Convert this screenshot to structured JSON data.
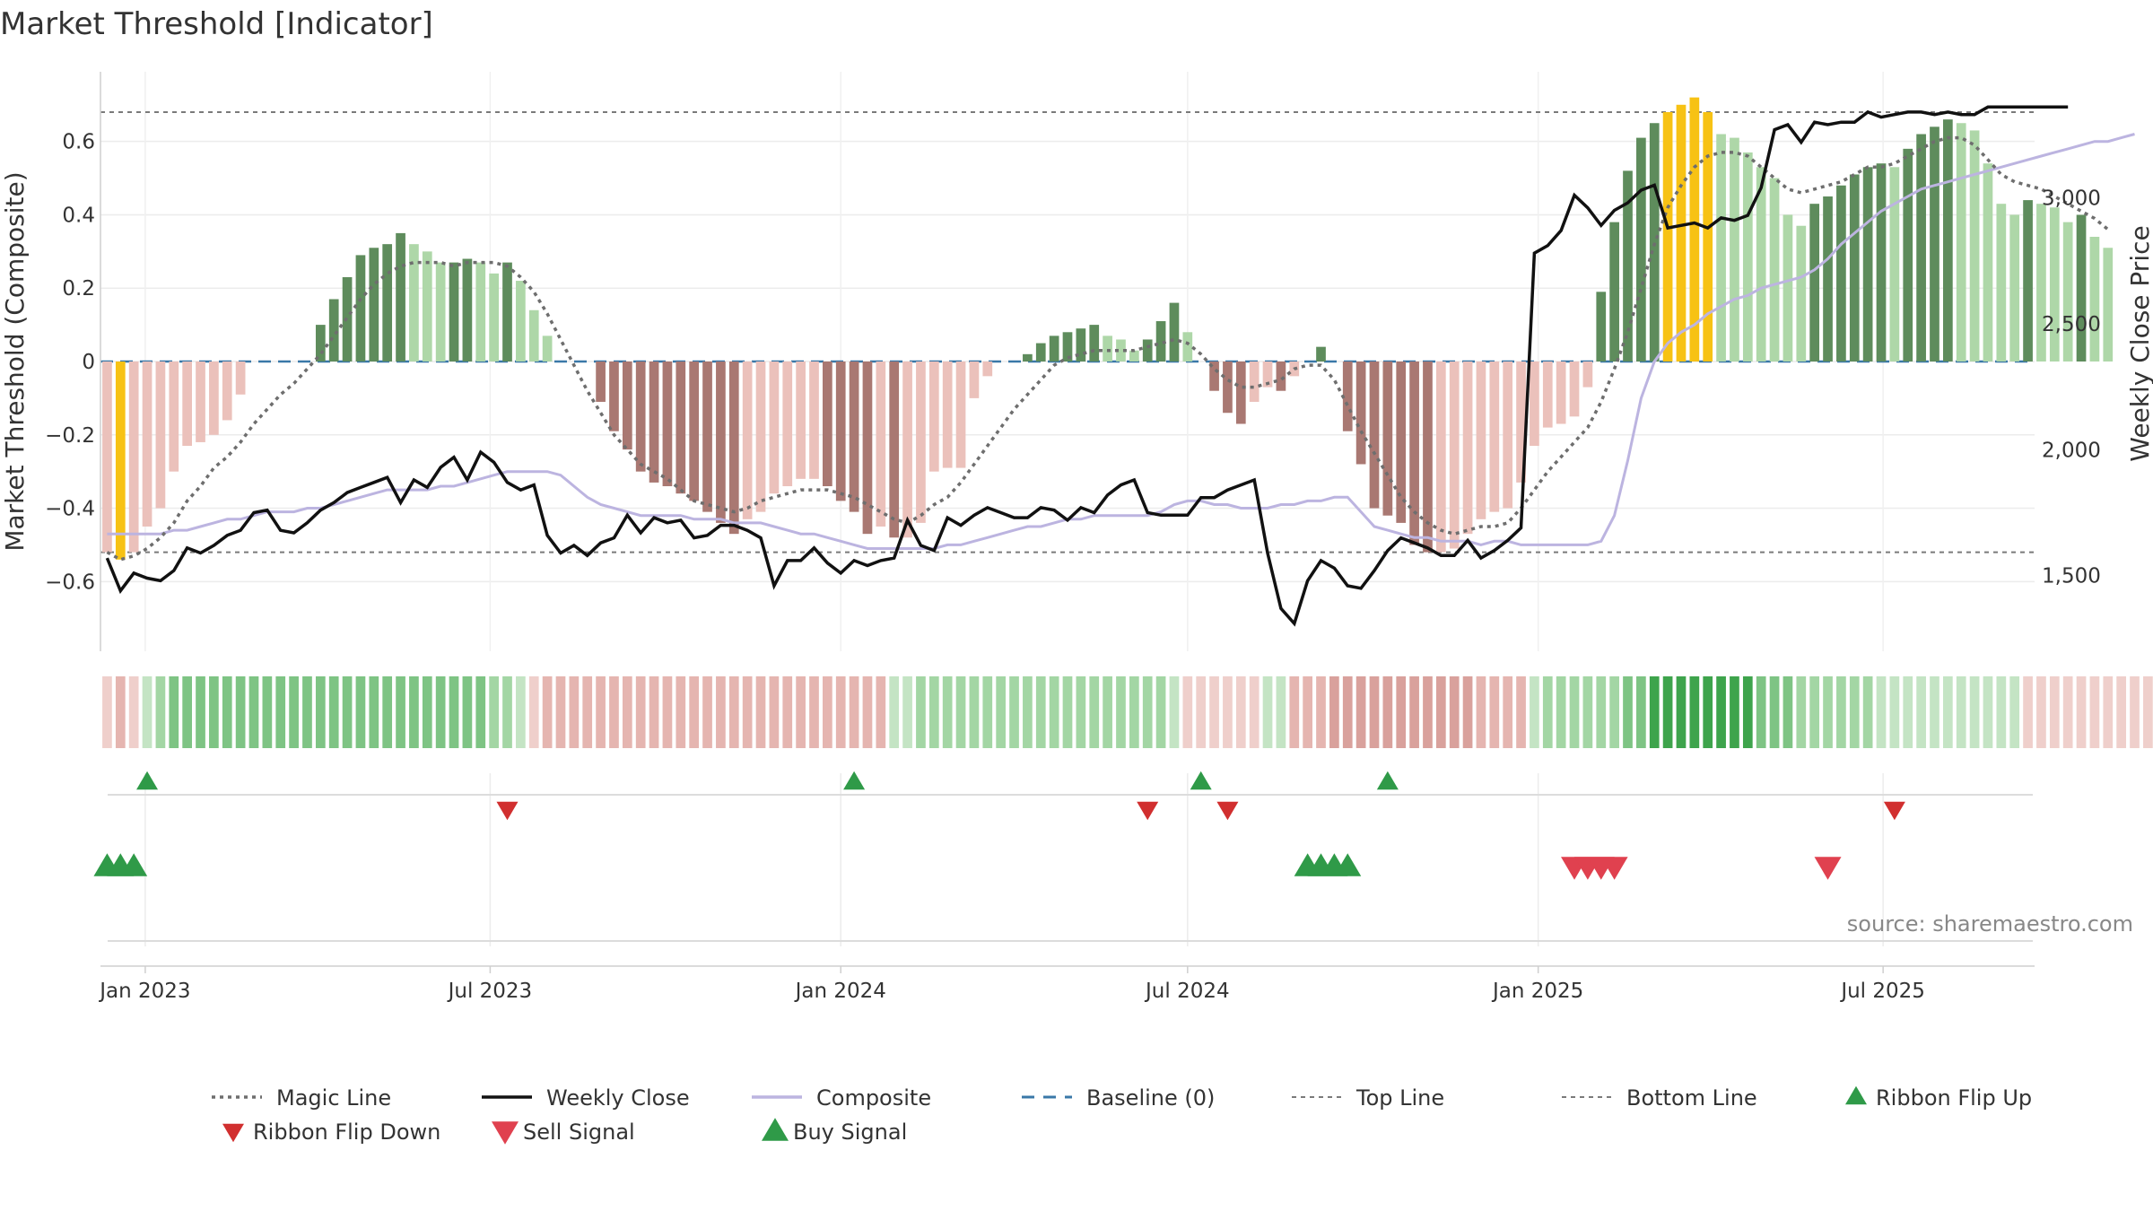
{
  "title": "Market Threshold [Indicator]",
  "source": "source: sharemaestro.com",
  "colors": {
    "strong_pos": "#5e8c5c",
    "weak_pos": "#aed7a8",
    "strong_neg": "#a97872",
    "weak_neg": "#ebc1bb",
    "extreme": "#f7c214",
    "close": "#111111",
    "composite": "#bcb4e0",
    "magic": "#6e6e6e",
    "baseline": "#3a78a8",
    "threshold": "#7a7a7a",
    "flip_up": "#2f9a48",
    "flip_down": "#d12f2f",
    "sell": "#e0414f",
    "buy": "#2f9a48"
  },
  "chart_data": {
    "type": "bar",
    "title": "Market Threshold [Indicator]",
    "ylabel": "Market Threshold (Composite)",
    "y2label": "Weekly Close Price",
    "ylim": [
      -0.79,
      0.79
    ],
    "y2lim": [
      1200,
      3500
    ],
    "yticks": [
      -0.6,
      -0.4,
      -0.2,
      0,
      0.2,
      0.4,
      0.6
    ],
    "ytick_labels": [
      "−0.6",
      "−0.4",
      "−0.2",
      "0",
      "0.2",
      "0.4",
      "0.6"
    ],
    "y2ticks": [
      1500,
      2000,
      2500,
      3000
    ],
    "y2tick_labels": [
      "1,500",
      "2,000",
      "2,500",
      "3,000"
    ],
    "x_start": "2022-12-12",
    "weeks": 145,
    "xticks": [
      {
        "date": "2023-01-01",
        "label": "Jan 2023"
      },
      {
        "date": "2023-07-01",
        "label": "Jul 2023"
      },
      {
        "date": "2024-01-01",
        "label": "Jan 2024"
      },
      {
        "date": "2024-07-01",
        "label": "Jul 2024"
      },
      {
        "date": "2025-01-01",
        "label": "Jan 2025"
      },
      {
        "date": "2025-07-01",
        "label": "Jul 2025"
      }
    ],
    "top_line": 0.68,
    "bottom_line": -0.52,
    "baseline": 0,
    "composite_bars": [
      -0.52,
      -0.54,
      -0.52,
      -0.45,
      -0.4,
      -0.3,
      -0.23,
      -0.22,
      -0.2,
      -0.16,
      -0.09,
      0,
      0,
      0.0,
      0.0,
      0.0,
      0.1,
      0.17,
      0.23,
      0.29,
      0.31,
      0.32,
      0.35,
      0.32,
      0.3,
      0.27,
      0.27,
      0.28,
      0.27,
      0.24,
      0.27,
      0.22,
      0.14,
      0.07,
      0,
      0,
      0,
      -0.11,
      -0.19,
      -0.24,
      -0.3,
      -0.33,
      -0.34,
      -0.36,
      -0.38,
      -0.41,
      -0.44,
      -0.47,
      -0.43,
      -0.41,
      -0.36,
      -0.34,
      -0.32,
      -0.32,
      -0.34,
      -0.38,
      -0.41,
      -0.47,
      -0.45,
      -0.48,
      -0.48,
      -0.44,
      -0.3,
      -0.29,
      -0.29,
      -0.1,
      -0.04,
      0,
      0,
      0.02,
      0.05,
      0.07,
      0.08,
      0.09,
      0.1,
      0.07,
      0.06,
      0.03,
      0.06,
      0.11,
      0.16,
      0.08,
      0,
      -0.08,
      -0.14,
      -0.17,
      -0.11,
      -0.07,
      -0.08,
      -0.04,
      0,
      0.04,
      0,
      -0.19,
      -0.28,
      -0.4,
      -0.42,
      -0.44,
      -0.5,
      -0.52,
      -0.52,
      -0.51,
      -0.47,
      -0.43,
      -0.41,
      -0.4,
      -0.33,
      -0.23,
      -0.18,
      -0.17,
      -0.15,
      -0.07,
      0.19,
      0.38,
      0.52,
      0.61,
      0.65,
      0.68,
      0.7,
      0.72,
      0.68,
      0.62,
      0.61,
      0.57,
      0.53,
      0.5,
      0.4,
      0.37,
      0.43,
      0.45,
      0.48,
      0.51,
      0.53,
      0.54,
      0.53,
      0.58,
      0.62,
      0.64,
      0.66,
      0.65,
      0.63,
      0.54,
      0.43,
      0.4,
      0.44,
      0.43,
      0.42,
      0.38,
      0.4,
      0.34,
      0.31
    ],
    "magic_line": [
      -0.52,
      -0.54,
      -0.53,
      -0.51,
      -0.48,
      -0.44,
      -0.38,
      -0.34,
      -0.29,
      -0.26,
      -0.22,
      -0.17,
      -0.13,
      -0.09,
      -0.06,
      -0.02,
      0.02,
      0.07,
      0.12,
      0.17,
      0.21,
      0.24,
      0.26,
      0.27,
      0.27,
      0.27,
      0.26,
      0.27,
      0.27,
      0.27,
      0.26,
      0.23,
      0.19,
      0.13,
      0.06,
      -0.01,
      -0.08,
      -0.14,
      -0.2,
      -0.24,
      -0.28,
      -0.3,
      -0.32,
      -0.35,
      -0.38,
      -0.39,
      -0.4,
      -0.41,
      -0.4,
      -0.38,
      -0.37,
      -0.36,
      -0.35,
      -0.35,
      -0.35,
      -0.36,
      -0.37,
      -0.39,
      -0.41,
      -0.43,
      -0.44,
      -0.42,
      -0.39,
      -0.37,
      -0.33,
      -0.28,
      -0.23,
      -0.18,
      -0.13,
      -0.09,
      -0.05,
      -0.01,
      0.01,
      0.02,
      0.03,
      0.03,
      0.03,
      0.03,
      0.04,
      0.05,
      0.06,
      0.05,
      0.02,
      -0.02,
      -0.05,
      -0.07,
      -0.07,
      -0.06,
      -0.05,
      -0.02,
      -0.01,
      -0.01,
      -0.05,
      -0.12,
      -0.19,
      -0.25,
      -0.31,
      -0.37,
      -0.41,
      -0.44,
      -0.46,
      -0.47,
      -0.46,
      -0.45,
      -0.45,
      -0.44,
      -0.4,
      -0.35,
      -0.3,
      -0.26,
      -0.22,
      -0.18,
      -0.11,
      -0.02,
      0.08,
      0.2,
      0.32,
      0.42,
      0.48,
      0.53,
      0.56,
      0.57,
      0.57,
      0.56,
      0.53,
      0.5,
      0.47,
      0.46,
      0.47,
      0.48,
      0.49,
      0.51,
      0.53,
      0.53,
      0.54,
      0.56,
      0.58,
      0.6,
      0.61,
      0.61,
      0.59,
      0.55,
      0.51,
      0.49,
      0.48,
      0.47,
      0.45,
      0.43,
      0.41,
      0.39,
      0.36
    ],
    "composite_line": [
      -0.47,
      -0.47,
      -0.47,
      -0.47,
      -0.47,
      -0.46,
      -0.46,
      -0.45,
      -0.44,
      -0.43,
      -0.43,
      -0.42,
      -0.41,
      -0.41,
      -0.41,
      -0.4,
      -0.4,
      -0.39,
      -0.38,
      -0.37,
      -0.36,
      -0.35,
      -0.35,
      -0.35,
      -0.35,
      -0.34,
      -0.34,
      -0.33,
      -0.32,
      -0.31,
      -0.3,
      -0.3,
      -0.3,
      -0.3,
      -0.31,
      -0.34,
      -0.37,
      -0.39,
      -0.4,
      -0.41,
      -0.42,
      -0.42,
      -0.42,
      -0.42,
      -0.43,
      -0.43,
      -0.43,
      -0.44,
      -0.44,
      -0.44,
      -0.45,
      -0.46,
      -0.47,
      -0.47,
      -0.48,
      -0.49,
      -0.5,
      -0.51,
      -0.51,
      -0.51,
      -0.51,
      -0.51,
      -0.51,
      -0.5,
      -0.5,
      -0.49,
      -0.48,
      -0.47,
      -0.46,
      -0.45,
      -0.45,
      -0.44,
      -0.43,
      -0.43,
      -0.42,
      -0.42,
      -0.42,
      -0.42,
      -0.42,
      -0.41,
      -0.39,
      -0.38,
      -0.38,
      -0.39,
      -0.39,
      -0.4,
      -0.4,
      -0.4,
      -0.39,
      -0.39,
      -0.38,
      -0.38,
      -0.37,
      -0.37,
      -0.41,
      -0.45,
      -0.46,
      -0.47,
      -0.48,
      -0.48,
      -0.49,
      -0.49,
      -0.49,
      -0.5,
      -0.49,
      -0.49,
      -0.5,
      -0.5,
      -0.5,
      -0.5,
      -0.5,
      -0.5,
      -0.49,
      -0.42,
      -0.27,
      -0.1,
      0.0,
      0.05,
      0.08,
      0.1,
      0.13,
      0.15,
      0.17,
      0.18,
      0.2,
      0.21,
      0.22,
      0.23,
      0.25,
      0.28,
      0.32,
      0.35,
      0.38,
      0.41,
      0.43,
      0.45,
      0.47,
      0.48,
      0.49,
      0.5,
      0.51,
      0.52,
      0.53,
      0.54,
      0.55,
      0.56,
      0.57,
      0.58,
      0.59,
      0.6,
      0.6,
      0.61,
      0.62
    ],
    "weekly_close": [
      1570,
      1440,
      1510,
      1490,
      1480,
      1520,
      1610,
      1590,
      1620,
      1660,
      1680,
      1750,
      1760,
      1680,
      1670,
      1710,
      1760,
      1790,
      1830,
      1850,
      1870,
      1890,
      1790,
      1880,
      1850,
      1930,
      1970,
      1880,
      1990,
      1950,
      1870,
      1840,
      1860,
      1660,
      1590,
      1620,
      1580,
      1630,
      1650,
      1740,
      1670,
      1730,
      1710,
      1720,
      1650,
      1660,
      1700,
      1700,
      1680,
      1650,
      1460,
      1560,
      1560,
      1610,
      1550,
      1510,
      1560,
      1540,
      1560,
      1570,
      1720,
      1620,
      1600,
      1730,
      1700,
      1740,
      1770,
      1750,
      1730,
      1730,
      1770,
      1760,
      1720,
      1770,
      1750,
      1820,
      1860,
      1880,
      1750,
      1740,
      1740,
      1740,
      1810,
      1810,
      1840,
      1860,
      1880,
      1590,
      1370,
      1310,
      1480,
      1560,
      1530,
      1460,
      1450,
      1520,
      1600,
      1650,
      1630,
      1610,
      1580,
      1580,
      1640,
      1570,
      1600,
      1640,
      1690,
      2780,
      2810,
      2870,
      3010,
      2960,
      2890,
      2950,
      2980,
      3030,
      3050,
      2880,
      2890,
      2900,
      2880,
      2920,
      2910,
      2930,
      3040,
      3270,
      3290,
      3220,
      3300,
      3290,
      3300,
      3300,
      3340,
      3320,
      3330,
      3340,
      3340,
      3330,
      3340,
      3330,
      3330,
      3360,
      3360,
      3360,
      3360,
      3360,
      3360,
      3360
    ],
    "ribbon_levels": [
      -1,
      -2,
      -1,
      1,
      2,
      3,
      3,
      3,
      3,
      3,
      3,
      3,
      3,
      3,
      3,
      3,
      3,
      3,
      3,
      3,
      3,
      3,
      3,
      3,
      3,
      3,
      3,
      3,
      3,
      2,
      2,
      1,
      -1,
      -2,
      -2,
      -2,
      -2,
      -2,
      -2,
      -2,
      -2,
      -2,
      -2,
      -2,
      -2,
      -2,
      -2,
      -2,
      -2,
      -2,
      -2,
      -2,
      -2,
      -2,
      -2,
      -2,
      -2,
      -2,
      -2,
      1,
      1,
      2,
      2,
      2,
      2,
      2,
      2,
      2,
      2,
      2,
      2,
      2,
      2,
      2,
      2,
      2,
      2,
      2,
      2,
      2,
      1,
      -1,
      -1,
      -1,
      -1,
      -1,
      -1,
      1,
      1,
      -2,
      -2,
      -2,
      -3,
      -3,
      -3,
      -3,
      -3,
      -3,
      -3,
      -3,
      -3,
      -3,
      -3,
      -2,
      -2,
      -2,
      -2,
      1,
      2,
      2,
      2,
      2,
      2,
      2,
      3,
      3,
      4,
      4,
      4,
      4,
      4,
      4,
      4,
      4,
      3,
      3,
      3,
      2,
      2,
      2,
      2,
      2,
      2,
      1,
      1,
      1,
      1,
      1,
      1,
      1,
      1,
      1,
      1,
      1,
      -1,
      -1,
      -1,
      -1,
      -1,
      -1,
      -1,
      -1,
      -1,
      -1,
      -1
    ],
    "ribbon_flip_up": [
      "2023-01-02",
      "2024-01-08",
      "2024-07-08",
      "2024-10-14"
    ],
    "ribbon_flip_down": [
      "2023-07-10",
      "2024-06-10",
      "2024-07-22",
      "2025-07-07"
    ],
    "buy_signal": [
      "2022-12-12",
      "2022-12-19",
      "2022-12-26",
      "2024-09-02",
      "2024-09-09",
      "2024-09-16",
      "2024-09-23"
    ],
    "sell_signal": [
      "2025-01-20",
      "2025-01-27",
      "2025-02-03",
      "2025-02-10",
      "2025-06-02"
    ],
    "legend": [
      "Magic Line",
      "Weekly Close",
      "Composite",
      "Baseline (0)",
      "Top Line",
      "Bottom Line",
      "Ribbon Flip Up",
      "Ribbon Flip Down",
      "Sell Signal",
      "Buy Signal"
    ]
  }
}
